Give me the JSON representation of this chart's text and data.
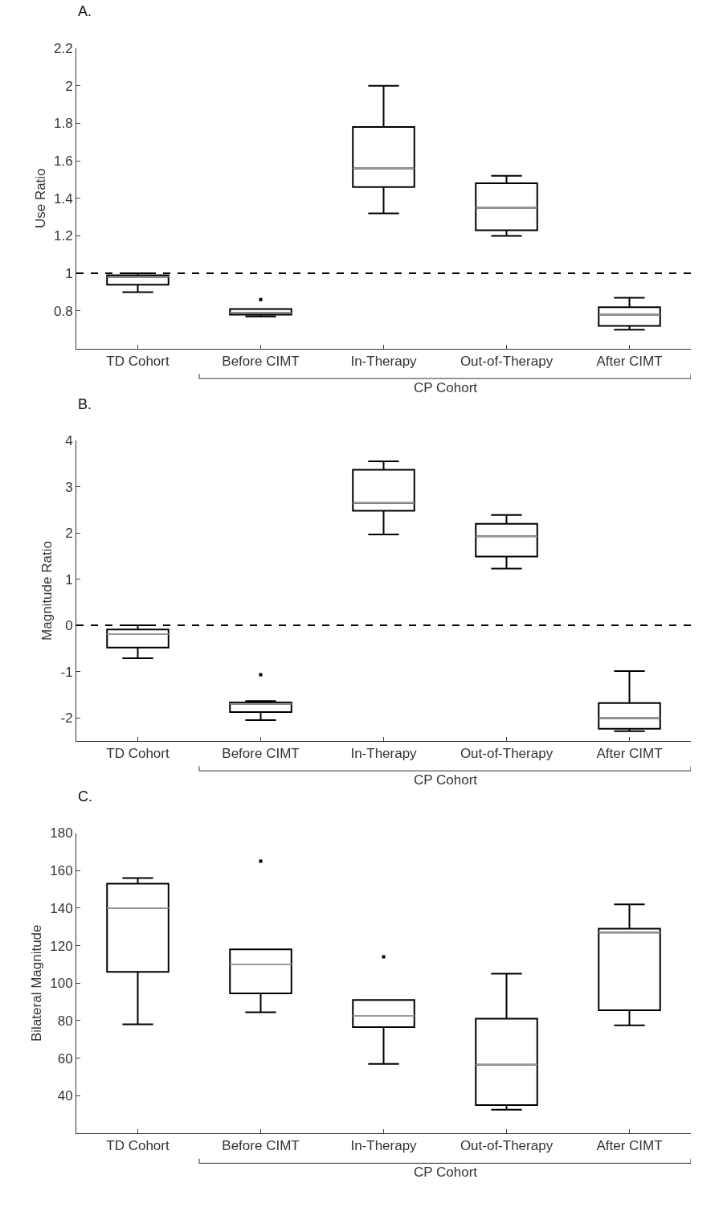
{
  "chart_data": [
    {
      "type": "box",
      "title": "A.",
      "ylabel": "Use Ratio",
      "categories": [
        "TD Cohort",
        "Before CIMT",
        "In-Therapy",
        "Out-of-Therapy",
        "After CIMT"
      ],
      "ylim": [
        0.6,
        2.2
      ],
      "yticks": [
        0.8,
        1,
        1.2,
        1.4,
        1.6,
        1.8,
        2,
        2.2
      ],
      "annotations": [
        "CP Cohort"
      ],
      "series": [
        {
          "color": "#000000",
          "boxes": [
            {
              "low": 0.9,
              "q1": 0.94,
              "median": 0.98,
              "q3": 0.99,
              "high": 1.0
            },
            {
              "low": 0.77,
              "q1": 0.78,
              "median": 0.79,
              "q3": 0.81,
              "high": 0.81,
              "outliers": [
                0.86
              ]
            },
            {
              "low": 1.32,
              "q1": 1.46,
              "median": 1.56,
              "q3": 1.78,
              "high": 2.0
            },
            {
              "low": 1.2,
              "q1": 1.23,
              "median": 1.35,
              "q3": 1.48,
              "high": 1.52
            },
            {
              "low": 0.7,
              "q1": 0.72,
              "median": 0.78,
              "q3": 0.82,
              "high": 0.87
            }
          ]
        }
      ],
      "ref_lines": [
        {
          "axis": "y",
          "value": 1,
          "color": "#000000",
          "line_style": "dashed"
        }
      ]
    },
    {
      "type": "box",
      "title": "B.",
      "ylabel": "Magnitude Ratio",
      "categories": [
        "TD Cohort",
        "Before CIMT",
        "In-Therapy",
        "Out-of-Therapy",
        "After CIMT"
      ],
      "ylim": [
        -2.5,
        4
      ],
      "yticks": [
        -2,
        -1,
        0,
        1,
        2,
        3,
        4
      ],
      "annotations": [
        "CP Cohort"
      ],
      "series": [
        {
          "color": "#000000",
          "boxes": [
            {
              "low": -0.71,
              "q1": -0.48,
              "median": -0.19,
              "q3": -0.09,
              "high": 0
            },
            {
              "low": -2.05,
              "q1": -1.88,
              "median": -1.7,
              "q3": -1.67,
              "high": -1.64,
              "outliers": [
                -1.07
              ]
            },
            {
              "low": 1.97,
              "q1": 2.48,
              "median": 2.65,
              "q3": 3.37,
              "high": 3.55
            },
            {
              "low": 1.23,
              "q1": 1.49,
              "median": 1.93,
              "q3": 2.2,
              "high": 2.39
            },
            {
              "low": -2.29,
              "q1": -2.24,
              "median": -2.01,
              "q3": -1.68,
              "high": -0.99
            }
          ]
        }
      ],
      "ref_lines": [
        {
          "axis": "y",
          "value": 0,
          "color": "#000000",
          "line_style": "dashed"
        }
      ]
    },
    {
      "type": "box",
      "title": "C.",
      "ylabel": "Bilateral Magnitude",
      "categories": [
        "TD Cohort",
        "Before CIMT",
        "In-Therapy",
        "Out-of-Therapy",
        "After CIMT"
      ],
      "ylim": [
        20,
        180
      ],
      "yticks": [
        40,
        60,
        80,
        100,
        120,
        140,
        160,
        180
      ],
      "annotations": [
        "CP Cohort"
      ],
      "series": [
        {
          "color": "#000000",
          "boxes": [
            {
              "low": 78,
              "q1": 106,
              "median": 140,
              "q3": 153,
              "high": 156
            },
            {
              "low": 84.5,
              "q1": 94.5,
              "median": 110,
              "q3": 118,
              "high": 118,
              "outliers": [
                165
              ]
            },
            {
              "low": 57,
              "q1": 76.5,
              "median": 82.5,
              "q3": 91,
              "high": 91,
              "outliers": [
                114
              ]
            },
            {
              "low": 32.5,
              "q1": 35,
              "median": 56.5,
              "q3": 81,
              "high": 105
            },
            {
              "low": 77.5,
              "q1": 85.5,
              "median": 127,
              "q3": 129,
              "high": 142
            }
          ]
        }
      ]
    }
  ]
}
